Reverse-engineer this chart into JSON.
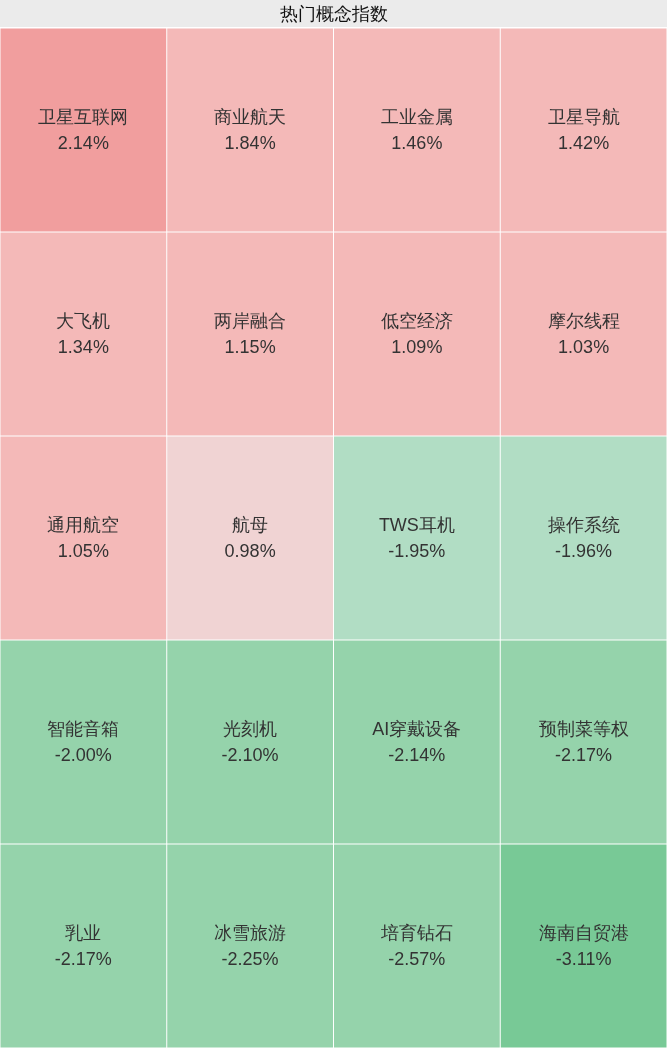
{
  "chart_data": {
    "type": "other",
    "title": "热门概念指数",
    "categories": [
      "卫星互联网",
      "商业航天",
      "工业金属",
      "卫星导航",
      "大飞机",
      "两岸融合",
      "低空经济",
      "摩尔线程",
      "通用航空",
      "航母",
      "TWS耳机",
      "操作系统",
      "智能音箱",
      "光刻机",
      "AI穿戴设备",
      "预制菜等权",
      "乳业",
      "冰雪旅游",
      "培育钻石",
      "海南自贸港"
    ],
    "values": [
      2.14,
      1.84,
      1.46,
      1.42,
      1.34,
      1.15,
      1.09,
      1.03,
      1.05,
      0.98,
      -1.95,
      -1.96,
      -2.0,
      -2.1,
      -2.14,
      -2.17,
      -2.17,
      -2.25,
      -2.57,
      -3.11
    ],
    "value_labels": [
      "2.14%",
      "1.84%",
      "1.46%",
      "1.42%",
      "1.34%",
      "1.15%",
      "1.09%",
      "1.03%",
      "1.05%",
      "0.98%",
      "-1.95%",
      "-1.96%",
      "-2.00%",
      "-2.10%",
      "-2.14%",
      "-2.17%",
      "-2.17%",
      "-2.25%",
      "-2.57%",
      "-3.11%"
    ]
  }
}
